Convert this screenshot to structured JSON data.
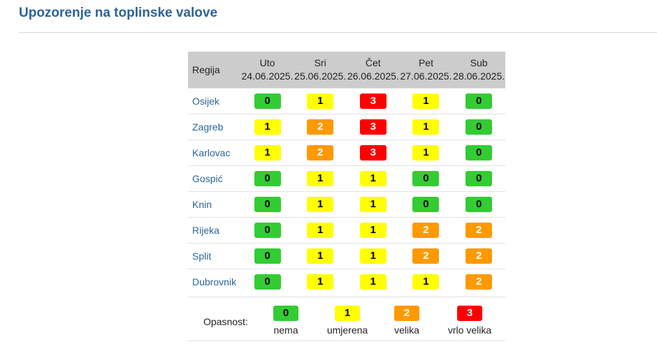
{
  "page": {
    "title": "Upozorenje na toplinske valove"
  },
  "table": {
    "region_header": "Regija",
    "days": [
      {
        "day": "Uto",
        "date": "24.06.2025."
      },
      {
        "day": "Sri",
        "date": "25.06.2025."
      },
      {
        "day": "Čet",
        "date": "26.06.2025."
      },
      {
        "day": "Pet",
        "date": "27.06.2025."
      },
      {
        "day": "Sub",
        "date": "28.06.2025."
      }
    ],
    "rows": [
      {
        "region": "Osijek",
        "levels": [
          "0",
          "1",
          "3",
          "1",
          "0"
        ]
      },
      {
        "region": "Zagreb",
        "levels": [
          "1",
          "2",
          "3",
          "1",
          "0"
        ]
      },
      {
        "region": "Karlovac",
        "levels": [
          "1",
          "2",
          "3",
          "1",
          "0"
        ]
      },
      {
        "region": "Gospić",
        "levels": [
          "0",
          "1",
          "1",
          "0",
          "0"
        ]
      },
      {
        "region": "Knin",
        "levels": [
          "0",
          "1",
          "1",
          "0",
          "0"
        ]
      },
      {
        "region": "Rijeka",
        "levels": [
          "0",
          "1",
          "1",
          "2",
          "2"
        ]
      },
      {
        "region": "Split",
        "levels": [
          "0",
          "1",
          "1",
          "2",
          "2"
        ]
      },
      {
        "region": "Dubrovnik",
        "levels": [
          "0",
          "1",
          "1",
          "1",
          "2"
        ]
      }
    ]
  },
  "legend": {
    "label": "Opasnost:",
    "items": [
      {
        "level": "0",
        "text": "nema",
        "color": "#33cc33"
      },
      {
        "level": "1",
        "text": "umjerena",
        "color": "#ffff00"
      },
      {
        "level": "2",
        "text": "velika",
        "color": "#ff9900"
      },
      {
        "level": "3",
        "text": "vrlo velika",
        "color": "#ff0000"
      }
    ]
  }
}
